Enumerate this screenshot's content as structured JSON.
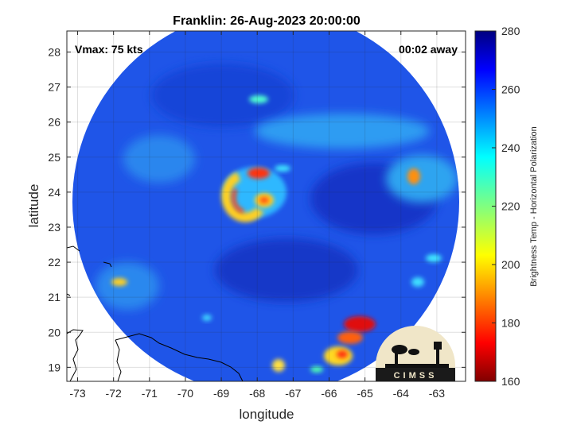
{
  "chart_data": {
    "type": "heatmap",
    "title": "Franklin: 26-Aug-2023 20:00:00",
    "xlabel": "longitude",
    "ylabel": "latitude",
    "xlim": [
      -73.3,
      -62.2
    ],
    "ylim": [
      18.6,
      28.6
    ],
    "xticks": [
      "-73",
      "-72",
      "-71",
      "-70",
      "-69",
      "-68",
      "-67",
      "-66",
      "-65",
      "-64",
      "-63"
    ],
    "yticks": [
      "19",
      "20",
      "21",
      "22",
      "23",
      "24",
      "25",
      "26",
      "27",
      "28"
    ],
    "annotations": {
      "vmax": "Vmax: 75 kts",
      "time_offset": "00:02 away"
    },
    "colorbar": {
      "label": "Brightness Temp - Horizontal Polarization",
      "range": [
        160,
        280
      ],
      "ticks": [
        "160",
        "180",
        "200",
        "220",
        "240",
        "260",
        "280"
      ]
    },
    "swath": {
      "center_lon": -67.75,
      "center_lat": 23.4,
      "radius_deg": 5.4
    },
    "features": [
      {
        "name": "eye",
        "lon": -67.75,
        "lat": 23.95,
        "value": 248
      },
      {
        "name": "eyewall-west",
        "lon": -68.5,
        "lat": 23.5,
        "value": 195
      },
      {
        "name": "eyewall-north",
        "lon": -67.85,
        "lat": 24.5,
        "value": 185
      },
      {
        "name": "eyewall-east",
        "lon": -67.45,
        "lat": 23.8,
        "value": 195
      },
      {
        "name": "rainband-southeast",
        "lon": -65.2,
        "lat": 20.0,
        "value": 175
      },
      {
        "name": "rainband-south",
        "lon": -65.6,
        "lat": 19.4,
        "value": 185
      },
      {
        "name": "convection-east",
        "lon": -63.5,
        "lat": 24.5,
        "value": 200
      },
      {
        "name": "convection-southwest",
        "lon": -71.6,
        "lat": 21.4,
        "value": 215
      }
    ],
    "grid": true,
    "logo": "CIMSS"
  },
  "colors": {
    "background_field": "#1f52e6",
    "colormap": "jet"
  }
}
